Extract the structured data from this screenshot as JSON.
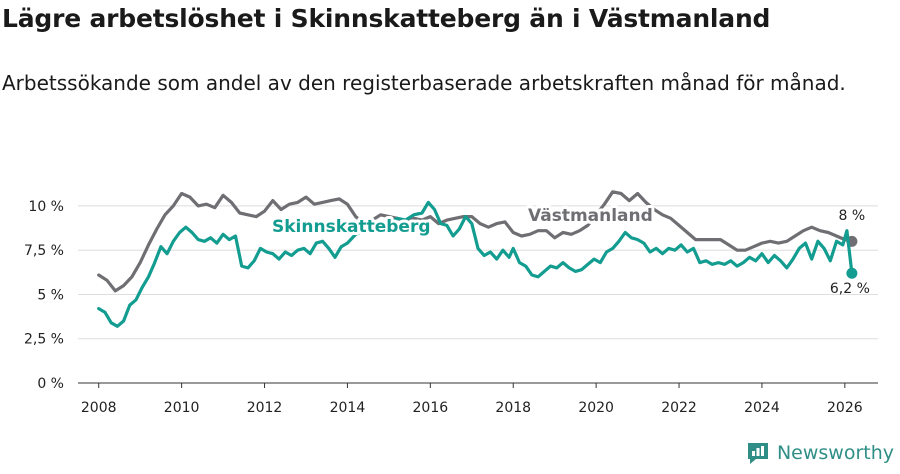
{
  "title": "Lägre arbetslöshet i Skinnskatteberg än i Västmanland",
  "subtitle": "Arbetssökande som andel av den registerbaserade arbetskraften månad för månad.",
  "brand": "Newsworthy",
  "colors": {
    "region": "#6f6e73",
    "municipality": "#139c90",
    "grid": "#dedede",
    "axis": "#333333"
  },
  "chart_data": {
    "type": "line",
    "x_unit": "year",
    "xlim": [
      2007.5,
      2026.8
    ],
    "ylim": [
      0,
      10.9
    ],
    "x_ticks": [
      2008,
      2010,
      2012,
      2014,
      2016,
      2018,
      2020,
      2022,
      2024,
      2026
    ],
    "x_tick_labels": [
      "2008",
      "2010",
      "2012",
      "2014",
      "2016",
      "2018",
      "2020",
      "2022",
      "2024",
      "2026"
    ],
    "y_ticks": [
      0,
      2.5,
      5,
      7.5,
      10
    ],
    "y_tick_labels": [
      "0 %",
      "2,5 %",
      "5 %",
      "7,5 %",
      "10 %"
    ],
    "grid": "horizontal",
    "series": [
      {
        "name": "Västmanland",
        "label": "Västmanland",
        "color_key": "region",
        "end_label": "8 %",
        "end_value": 8.0,
        "points": [
          [
            2008.0,
            6.1
          ],
          [
            2008.2,
            5.8
          ],
          [
            2008.4,
            5.2
          ],
          [
            2008.6,
            5.5
          ],
          [
            2008.8,
            6.0
          ],
          [
            2009.0,
            6.8
          ],
          [
            2009.2,
            7.8
          ],
          [
            2009.4,
            8.7
          ],
          [
            2009.6,
            9.5
          ],
          [
            2009.8,
            10.0
          ],
          [
            2010.0,
            10.7
          ],
          [
            2010.2,
            10.5
          ],
          [
            2010.4,
            10.0
          ],
          [
            2010.6,
            10.1
          ],
          [
            2010.8,
            9.9
          ],
          [
            2011.0,
            10.6
          ],
          [
            2011.2,
            10.2
          ],
          [
            2011.4,
            9.6
          ],
          [
            2011.6,
            9.5
          ],
          [
            2011.8,
            9.4
          ],
          [
            2012.0,
            9.7
          ],
          [
            2012.2,
            10.3
          ],
          [
            2012.4,
            9.8
          ],
          [
            2012.6,
            10.1
          ],
          [
            2012.8,
            10.2
          ],
          [
            2013.0,
            10.5
          ],
          [
            2013.2,
            10.1
          ],
          [
            2013.4,
            10.2
          ],
          [
            2013.6,
            10.3
          ],
          [
            2013.8,
            10.4
          ],
          [
            2014.0,
            10.1
          ],
          [
            2014.2,
            9.4
          ],
          [
            2014.4,
            9.0
          ],
          [
            2014.6,
            9.2
          ],
          [
            2014.8,
            9.5
          ],
          [
            2015.0,
            9.4
          ],
          [
            2015.2,
            9.3
          ],
          [
            2015.4,
            9.1
          ],
          [
            2015.6,
            9.3
          ],
          [
            2015.8,
            9.2
          ],
          [
            2016.0,
            9.4
          ],
          [
            2016.2,
            9.0
          ],
          [
            2016.4,
            9.2
          ],
          [
            2016.6,
            9.3
          ],
          [
            2016.8,
            9.4
          ],
          [
            2017.0,
            9.4
          ],
          [
            2017.2,
            9.0
          ],
          [
            2017.4,
            8.8
          ],
          [
            2017.6,
            9.0
          ],
          [
            2017.8,
            9.1
          ],
          [
            2018.0,
            8.5
          ],
          [
            2018.2,
            8.3
          ],
          [
            2018.4,
            8.4
          ],
          [
            2018.6,
            8.6
          ],
          [
            2018.8,
            8.6
          ],
          [
            2019.0,
            8.2
          ],
          [
            2019.2,
            8.5
          ],
          [
            2019.4,
            8.4
          ],
          [
            2019.6,
            8.6
          ],
          [
            2019.8,
            8.9
          ],
          [
            2020.0,
            9.5
          ],
          [
            2020.2,
            10.1
          ],
          [
            2020.4,
            10.8
          ],
          [
            2020.6,
            10.7
          ],
          [
            2020.8,
            10.3
          ],
          [
            2021.0,
            10.7
          ],
          [
            2021.2,
            10.2
          ],
          [
            2021.4,
            9.8
          ],
          [
            2021.6,
            9.5
          ],
          [
            2021.8,
            9.3
          ],
          [
            2022.0,
            8.9
          ],
          [
            2022.2,
            8.5
          ],
          [
            2022.4,
            8.1
          ],
          [
            2022.6,
            8.1
          ],
          [
            2022.8,
            8.1
          ],
          [
            2023.0,
            8.1
          ],
          [
            2023.2,
            7.8
          ],
          [
            2023.4,
            7.5
          ],
          [
            2023.6,
            7.5
          ],
          [
            2023.8,
            7.7
          ],
          [
            2024.0,
            7.9
          ],
          [
            2024.2,
            8.0
          ],
          [
            2024.4,
            7.9
          ],
          [
            2024.6,
            8.0
          ],
          [
            2024.8,
            8.3
          ],
          [
            2025.0,
            8.6
          ],
          [
            2025.2,
            8.8
          ],
          [
            2025.4,
            8.6
          ],
          [
            2025.6,
            8.5
          ],
          [
            2025.8,
            8.3
          ],
          [
            2026.0,
            8.1
          ],
          [
            2026.17,
            8.0
          ]
        ]
      },
      {
        "name": "Skinnskatteberg",
        "label": "Skinnskatteberg",
        "color_key": "municipality",
        "end_label": "6,2 %",
        "end_value": 6.2,
        "points": [
          [
            2008.0,
            4.2
          ],
          [
            2008.15,
            4.0
          ],
          [
            2008.3,
            3.4
          ],
          [
            2008.45,
            3.2
          ],
          [
            2008.6,
            3.5
          ],
          [
            2008.75,
            4.4
          ],
          [
            2008.9,
            4.7
          ],
          [
            2009.05,
            5.4
          ],
          [
            2009.2,
            6.0
          ],
          [
            2009.35,
            6.8
          ],
          [
            2009.5,
            7.7
          ],
          [
            2009.65,
            7.3
          ],
          [
            2009.8,
            8.0
          ],
          [
            2009.95,
            8.5
          ],
          [
            2010.1,
            8.8
          ],
          [
            2010.25,
            8.5
          ],
          [
            2010.4,
            8.1
          ],
          [
            2010.55,
            8.0
          ],
          [
            2010.7,
            8.2
          ],
          [
            2010.85,
            7.9
          ],
          [
            2011.0,
            8.4
          ],
          [
            2011.15,
            8.1
          ],
          [
            2011.3,
            8.3
          ],
          [
            2011.45,
            6.6
          ],
          [
            2011.6,
            6.5
          ],
          [
            2011.75,
            6.9
          ],
          [
            2011.9,
            7.6
          ],
          [
            2012.05,
            7.4
          ],
          [
            2012.2,
            7.3
          ],
          [
            2012.35,
            7.0
          ],
          [
            2012.5,
            7.4
          ],
          [
            2012.65,
            7.2
          ],
          [
            2012.8,
            7.5
          ],
          [
            2012.95,
            7.6
          ],
          [
            2013.1,
            7.3
          ],
          [
            2013.25,
            7.9
          ],
          [
            2013.4,
            8.0
          ],
          [
            2013.55,
            7.6
          ],
          [
            2013.7,
            7.1
          ],
          [
            2013.85,
            7.7
          ],
          [
            2014.0,
            7.9
          ],
          [
            2014.2,
            8.4
          ],
          [
            2014.4,
            8.6
          ],
          [
            2014.6,
            8.9
          ],
          [
            2014.8,
            9.1
          ],
          [
            2015.0,
            9.0
          ],
          [
            2015.2,
            9.3
          ],
          [
            2015.4,
            9.2
          ],
          [
            2015.6,
            9.5
          ],
          [
            2015.8,
            9.6
          ],
          [
            2015.95,
            10.2
          ],
          [
            2016.1,
            9.8
          ],
          [
            2016.25,
            9.0
          ],
          [
            2016.4,
            8.9
          ],
          [
            2016.55,
            8.3
          ],
          [
            2016.7,
            8.7
          ],
          [
            2016.85,
            9.4
          ],
          [
            2017.0,
            9.0
          ],
          [
            2017.15,
            7.6
          ],
          [
            2017.3,
            7.2
          ],
          [
            2017.45,
            7.4
          ],
          [
            2017.6,
            7.0
          ],
          [
            2017.75,
            7.5
          ],
          [
            2017.9,
            7.1
          ],
          [
            2018.0,
            7.6
          ],
          [
            2018.15,
            6.8
          ],
          [
            2018.3,
            6.6
          ],
          [
            2018.45,
            6.1
          ],
          [
            2018.6,
            6.0
          ],
          [
            2018.75,
            6.3
          ],
          [
            2018.9,
            6.6
          ],
          [
            2019.05,
            6.5
          ],
          [
            2019.2,
            6.8
          ],
          [
            2019.35,
            6.5
          ],
          [
            2019.5,
            6.3
          ],
          [
            2019.65,
            6.4
          ],
          [
            2019.8,
            6.7
          ],
          [
            2019.95,
            7.0
          ],
          [
            2020.1,
            6.8
          ],
          [
            2020.25,
            7.4
          ],
          [
            2020.4,
            7.6
          ],
          [
            2020.55,
            8.0
          ],
          [
            2020.7,
            8.5
          ],
          [
            2020.85,
            8.2
          ],
          [
            2021.0,
            8.1
          ],
          [
            2021.15,
            7.9
          ],
          [
            2021.3,
            7.4
          ],
          [
            2021.45,
            7.6
          ],
          [
            2021.6,
            7.3
          ],
          [
            2021.75,
            7.6
          ],
          [
            2021.9,
            7.5
          ],
          [
            2022.05,
            7.8
          ],
          [
            2022.2,
            7.4
          ],
          [
            2022.35,
            7.6
          ],
          [
            2022.5,
            6.8
          ],
          [
            2022.65,
            6.9
          ],
          [
            2022.8,
            6.7
          ],
          [
            2022.95,
            6.8
          ],
          [
            2023.1,
            6.7
          ],
          [
            2023.25,
            6.9
          ],
          [
            2023.4,
            6.6
          ],
          [
            2023.55,
            6.8
          ],
          [
            2023.7,
            7.1
          ],
          [
            2023.85,
            6.9
          ],
          [
            2024.0,
            7.3
          ],
          [
            2024.15,
            6.8
          ],
          [
            2024.3,
            7.2
          ],
          [
            2024.45,
            6.9
          ],
          [
            2024.6,
            6.5
          ],
          [
            2024.75,
            7.0
          ],
          [
            2024.9,
            7.6
          ],
          [
            2025.05,
            7.9
          ],
          [
            2025.2,
            7.0
          ],
          [
            2025.35,
            8.0
          ],
          [
            2025.5,
            7.6
          ],
          [
            2025.65,
            6.9
          ],
          [
            2025.8,
            8.0
          ],
          [
            2025.95,
            7.8
          ],
          [
            2026.05,
            8.6
          ],
          [
            2026.17,
            6.2
          ]
        ]
      }
    ]
  }
}
